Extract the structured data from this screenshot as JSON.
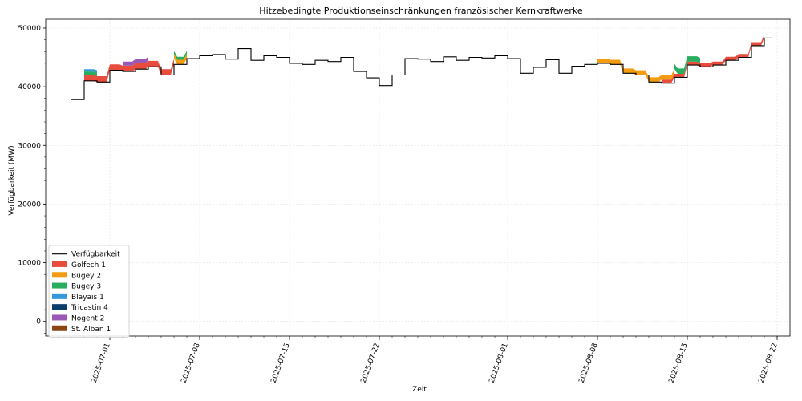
{
  "chart_data": {
    "type": "area",
    "title": "Hitzebedingte Produktionseinschränkungen französischer Kernkraftwerke",
    "xlabel": "Zeit",
    "ylabel": "Verfügbarkeit (MW)",
    "xlim": [
      "2025-06-26",
      "2025-08-23"
    ],
    "ylim": [
      -2500,
      51500
    ],
    "x_ticks": [
      "2025-07-01",
      "2025-07-08",
      "2025-07-15",
      "2025-07-22",
      "2025-08-01",
      "2025-08-08",
      "2025-08-15",
      "2025-08-22"
    ],
    "y_ticks": [
      0,
      10000,
      20000,
      30000,
      40000,
      50000
    ],
    "grid": true,
    "legend_position": "lower-left",
    "availability": {
      "name": "Verfügbarkeit",
      "color": "#000000",
      "points": [
        [
          "2025-06-28",
          37800
        ],
        [
          "2025-06-29",
          41000
        ],
        [
          "2025-06-30",
          40800
        ],
        [
          "2025-07-01",
          42800
        ],
        [
          "2025-07-02",
          42600
        ],
        [
          "2025-07-03",
          43000
        ],
        [
          "2025-07-04",
          43400
        ],
        [
          "2025-07-05",
          42000
        ],
        [
          "2025-07-06",
          43800
        ],
        [
          "2025-07-07",
          44800
        ],
        [
          "2025-07-08",
          45300
        ],
        [
          "2025-07-09",
          45500
        ],
        [
          "2025-07-10",
          44700
        ],
        [
          "2025-07-11",
          46500
        ],
        [
          "2025-07-12",
          44500
        ],
        [
          "2025-07-13",
          45300
        ],
        [
          "2025-07-14",
          45000
        ],
        [
          "2025-07-15",
          44000
        ],
        [
          "2025-07-16",
          43800
        ],
        [
          "2025-07-17",
          44500
        ],
        [
          "2025-07-18",
          44300
        ],
        [
          "2025-07-19",
          45000
        ],
        [
          "2025-07-20",
          42600
        ],
        [
          "2025-07-21",
          41500
        ],
        [
          "2025-07-22",
          40200
        ],
        [
          "2025-07-23",
          42000
        ],
        [
          "2025-07-24",
          44800
        ],
        [
          "2025-07-25",
          44700
        ],
        [
          "2025-07-26",
          44300
        ],
        [
          "2025-07-27",
          45100
        ],
        [
          "2025-07-28",
          44500
        ],
        [
          "2025-07-29",
          45000
        ],
        [
          "2025-07-30",
          44900
        ],
        [
          "2025-07-31",
          45300
        ],
        [
          "2025-08-01",
          44800
        ],
        [
          "2025-08-02",
          42300
        ],
        [
          "2025-08-03",
          43300
        ],
        [
          "2025-08-04",
          44600
        ],
        [
          "2025-08-05",
          42300
        ],
        [
          "2025-08-06",
          43500
        ],
        [
          "2025-08-07",
          43800
        ],
        [
          "2025-08-08",
          44000
        ],
        [
          "2025-08-09",
          43800
        ],
        [
          "2025-08-10",
          42300
        ],
        [
          "2025-08-11",
          42000
        ],
        [
          "2025-08-12",
          40800
        ],
        [
          "2025-08-13",
          40600
        ],
        [
          "2025-08-14",
          41600
        ],
        [
          "2025-08-15",
          43700
        ],
        [
          "2025-08-16",
          43400
        ],
        [
          "2025-08-17",
          43700
        ],
        [
          "2025-08-18",
          44500
        ],
        [
          "2025-08-19",
          45000
        ],
        [
          "2025-08-20",
          47000
        ],
        [
          "2025-08-21",
          48300
        ]
      ]
    },
    "series": [
      {
        "name": "Golfech 1",
        "color": "#e74c3c",
        "intervals": [
          [
            "2025-06-29",
            "2025-07-06",
            1000
          ],
          [
            "2025-08-13",
            "2025-08-21",
            600
          ]
        ]
      },
      {
        "name": "Bugey 2",
        "color": "#f39c12",
        "intervals": [
          [
            "2025-07-06",
            "2025-07-07",
            800
          ],
          [
            "2025-08-08",
            "2025-08-14",
            800
          ]
        ]
      },
      {
        "name": "Bugey 3",
        "color": "#27ae60",
        "intervals": [
          [
            "2025-06-29",
            "2025-06-30",
            600
          ],
          [
            "2025-07-06",
            "2025-07-07",
            500
          ],
          [
            "2025-08-14",
            "2025-08-16",
            900
          ]
        ]
      },
      {
        "name": "Blayais 1",
        "color": "#3498db",
        "intervals": [
          [
            "2025-06-29",
            "2025-06-30",
            400
          ]
        ]
      },
      {
        "name": "Tricastin 4",
        "color": "#0b3d6b",
        "intervals": []
      },
      {
        "name": "Nogent 2",
        "color": "#9b59b6",
        "intervals": [
          [
            "2025-07-02",
            "2025-07-04",
            700
          ]
        ]
      },
      {
        "name": "St. Alban 1",
        "color": "#8b4513",
        "intervals": []
      }
    ]
  }
}
